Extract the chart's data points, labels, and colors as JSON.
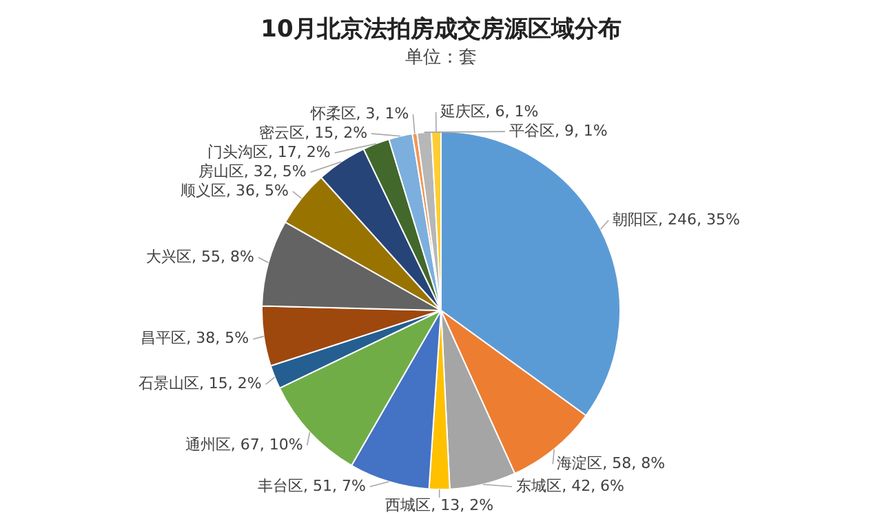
{
  "chart_data": {
    "type": "pie",
    "title": "10月北京法拍房成交房源区域分布",
    "subtitle": "单位：套",
    "categories": [
      "朝阳区",
      "海淀区",
      "东城区",
      "西城区",
      "丰台区",
      "通州区",
      "石景山区",
      "昌平区",
      "大兴区",
      "顺义区",
      "房山区",
      "门头沟区",
      "密云区",
      "怀柔区",
      "平谷区",
      "延庆区"
    ],
    "values": [
      246,
      58,
      42,
      13,
      51,
      67,
      15,
      38,
      55,
      36,
      32,
      17,
      15,
      3,
      9,
      6
    ],
    "colors": [
      "#5b9bd5",
      "#ed7d31",
      "#a5a5a5",
      "#ffc000",
      "#4472c4",
      "#70ad47",
      "#255e91",
      "#9e480e",
      "#636363",
      "#997300",
      "#264478",
      "#43682b",
      "#7cafdd",
      "#f1975a",
      "#b7b7b7",
      "#ffcd33"
    ],
    "value_labels": [
      ", 246, 35%",
      ", 58, 8%",
      ", 42, 6%",
      ", 13, 2%",
      ", 51, 7%",
      ", 67, 10%",
      ", 15, 2%",
      ", 38, 5%",
      ", 55, 8%",
      ", 36, 5%",
      ", 32, 5%",
      ", 17, 2%",
      ", 15, 2%",
      ", 3, 1%",
      ", 9, 1%",
      ", 6, 1%"
    ],
    "legend": false
  }
}
